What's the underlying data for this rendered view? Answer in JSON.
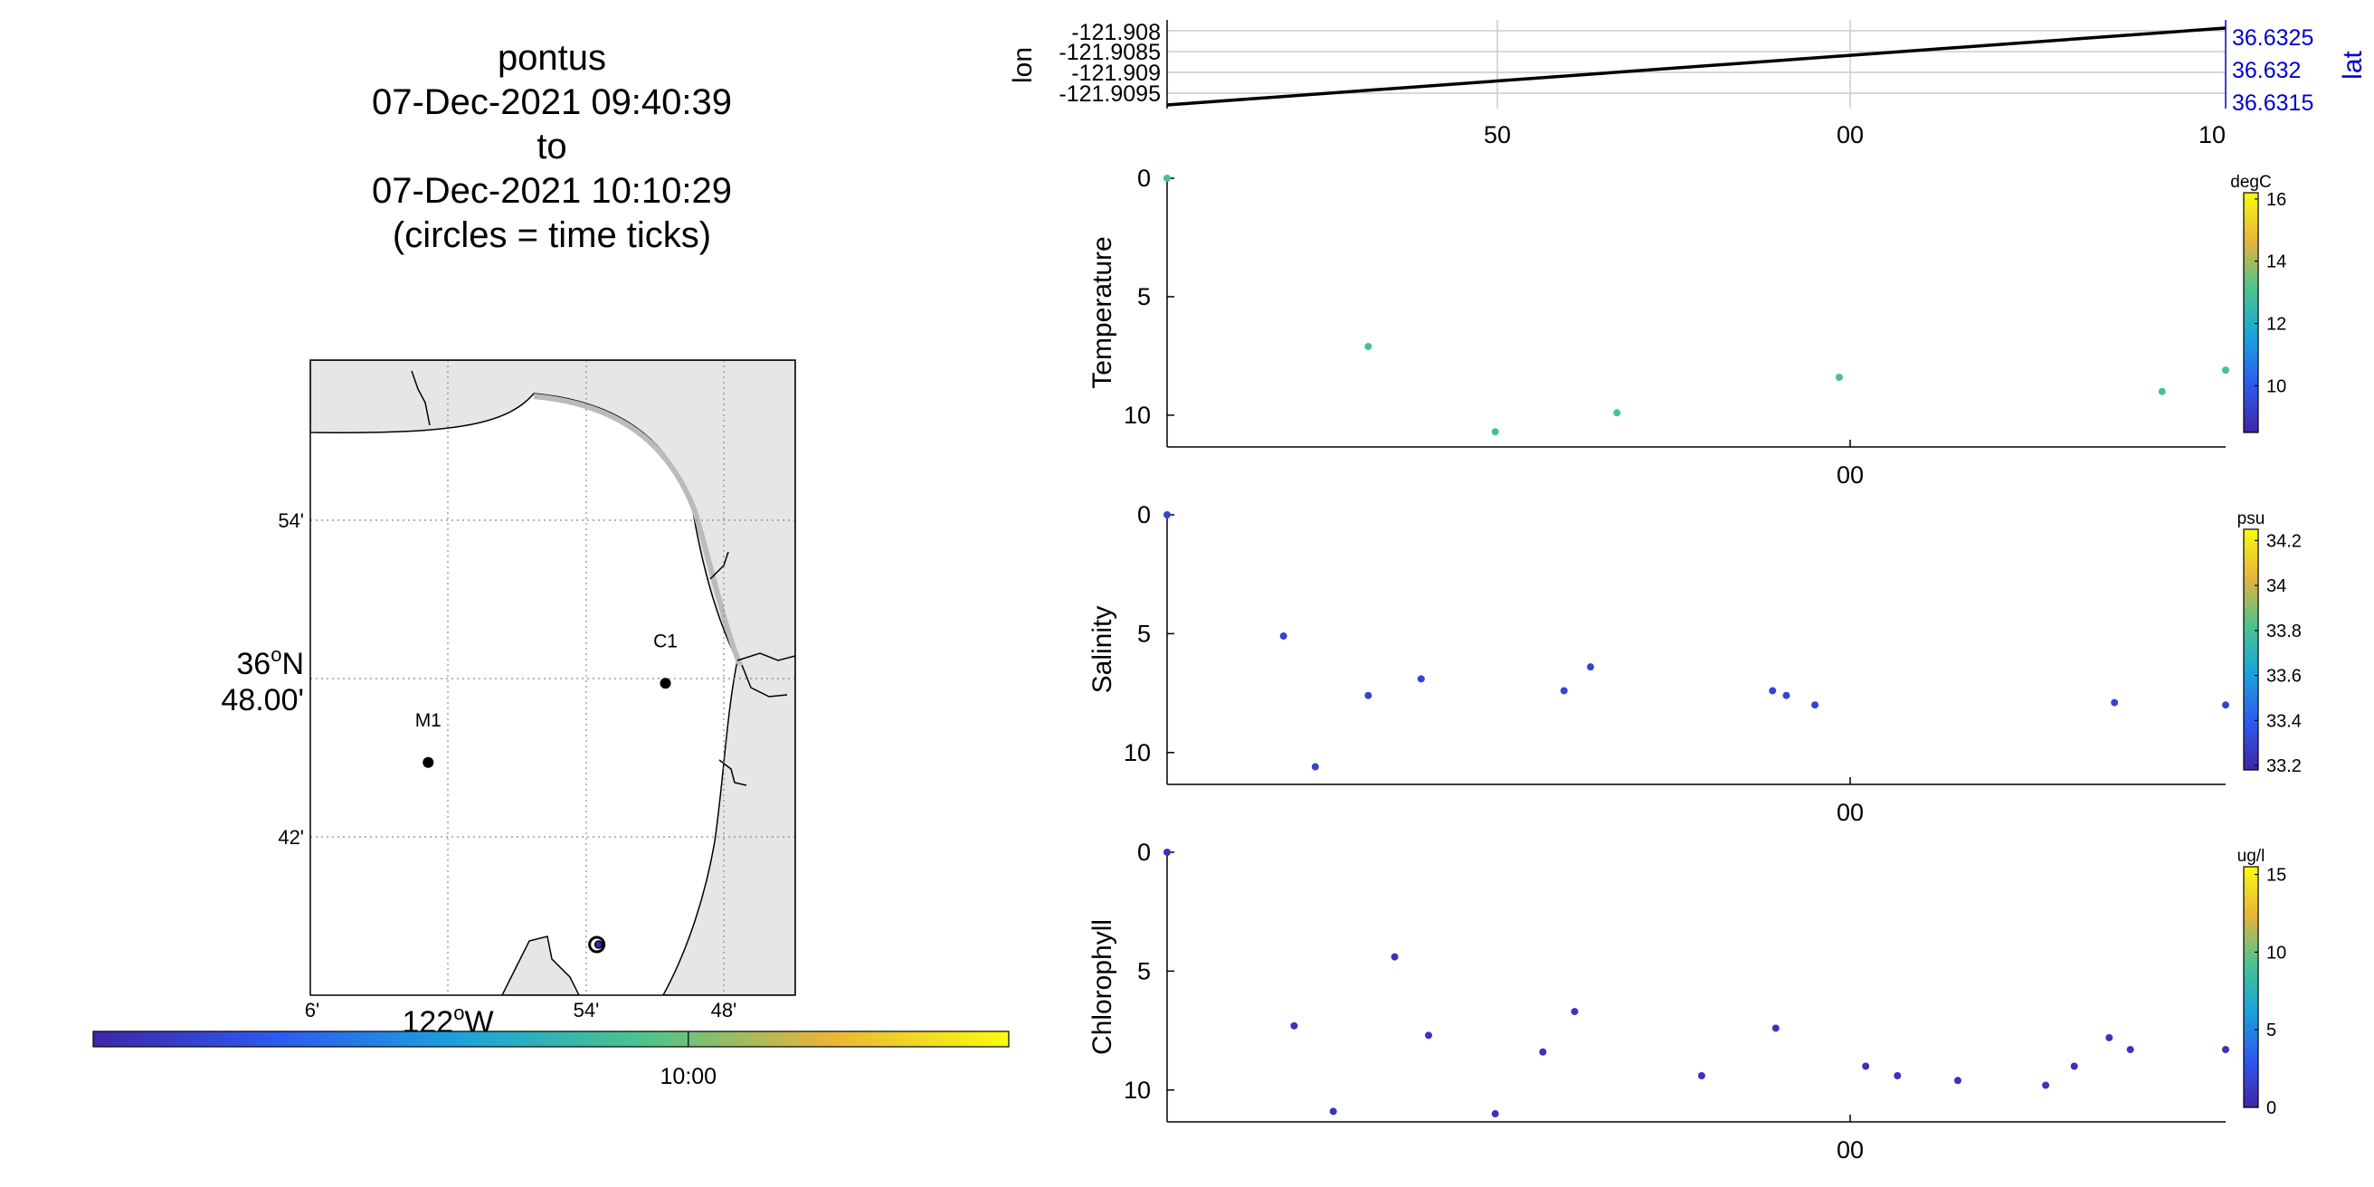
{
  "title": {
    "lines": [
      "pontus",
      "07-Dec-2021 09:40:39",
      "to",
      "07-Dec-2021 10:10:29",
      "(circles = time ticks)"
    ]
  },
  "colors": {
    "land": "#e6e6e6",
    "track": "#000000",
    "lat_axis": "#0000cc",
    "grid": "#cccccc"
  },
  "chart_data": [
    {
      "type": "map",
      "lat_label_top": "54'",
      "lat_label_mid_deg": "36",
      "lat_label_mid_deg_suffix": "N",
      "lat_label_mid_min": "48.00'",
      "lat_label_bottom": "42'",
      "lon_labels": [
        "6'",
        "54'",
        "48'"
      ],
      "lon_label_deg": "122",
      "lon_label_deg_suffix": "W",
      "stations": [
        {
          "name": "C1",
          "lon": -121.862,
          "lat": 36.797
        },
        {
          "name": "M1",
          "lon": -122.021,
          "lat": 36.747
        }
      ],
      "glider_position": {
        "lon": -121.908,
        "lat": 36.632
      },
      "time_colorbar": {
        "tick_label": "10:00",
        "tick_fraction": 0.65
      }
    },
    {
      "type": "line",
      "ylabel_left": "lon",
      "ylabel_right": "lat",
      "left_ticks": [
        "-121.908",
        "-121.9085",
        "-121.909",
        "-121.9095"
      ],
      "right_ticks": [
        "36.6325",
        "36.632",
        "36.6315"
      ],
      "x_ticks": [
        "50",
        "00",
        "10"
      ]
    },
    {
      "type": "scatter",
      "ylabel": "Temperature",
      "unit": "degC",
      "ylim": [
        0,
        11
      ],
      "y_ticks": [
        "0",
        "5",
        "10"
      ],
      "x_tick_label": "00",
      "colorbar": {
        "min": 8.5,
        "max": 16.2,
        "ticks": [
          "16",
          "14",
          "12",
          "10"
        ]
      },
      "points": [
        {
          "x": 0.0,
          "y": 0.0
        },
        {
          "x": 0.19,
          "y": 7.1
        },
        {
          "x": 0.31,
          "y": 10.7
        },
        {
          "x": 0.425,
          "y": 9.9
        },
        {
          "x": 0.635,
          "y": 8.4
        },
        {
          "x": 0.94,
          "y": 9.0
        },
        {
          "x": 1.0,
          "y": 8.1
        }
      ]
    },
    {
      "type": "scatter",
      "ylabel": "Salinity",
      "unit": "psu",
      "ylim": [
        0,
        11
      ],
      "y_ticks": [
        "0",
        "5",
        "10"
      ],
      "x_tick_label": "00",
      "colorbar": {
        "min": 33.18,
        "max": 34.25,
        "ticks": [
          "34.2",
          "34",
          "33.8",
          "33.6",
          "33.4",
          "33.2"
        ]
      },
      "points": [
        {
          "x": 0.0,
          "y": 0.0
        },
        {
          "x": 0.11,
          "y": 5.1
        },
        {
          "x": 0.14,
          "y": 10.6
        },
        {
          "x": 0.19,
          "y": 7.6
        },
        {
          "x": 0.24,
          "y": 6.9
        },
        {
          "x": 0.375,
          "y": 7.4
        },
        {
          "x": 0.4,
          "y": 6.4
        },
        {
          "x": 0.572,
          "y": 7.4
        },
        {
          "x": 0.585,
          "y": 7.6
        },
        {
          "x": 0.612,
          "y": 8.0
        },
        {
          "x": 0.895,
          "y": 7.9
        },
        {
          "x": 1.0,
          "y": 8.0
        }
      ]
    },
    {
      "type": "scatter",
      "ylabel": "Chlorophyll",
      "unit": "ug/l",
      "ylim": [
        0,
        11
      ],
      "y_ticks": [
        "0",
        "5",
        "10"
      ],
      "x_tick_label": "00",
      "colorbar": {
        "min": 0,
        "max": 15.5,
        "ticks": [
          "15",
          "10",
          "5",
          "0"
        ]
      },
      "points": [
        {
          "x": 0.0,
          "y": 0.0
        },
        {
          "x": 0.12,
          "y": 7.3
        },
        {
          "x": 0.157,
          "y": 10.9
        },
        {
          "x": 0.215,
          "y": 4.4
        },
        {
          "x": 0.247,
          "y": 7.7
        },
        {
          "x": 0.31,
          "y": 11.0
        },
        {
          "x": 0.355,
          "y": 8.4
        },
        {
          "x": 0.385,
          "y": 6.7
        },
        {
          "x": 0.505,
          "y": 9.4
        },
        {
          "x": 0.575,
          "y": 7.4
        },
        {
          "x": 0.66,
          "y": 9.0
        },
        {
          "x": 0.69,
          "y": 9.4
        },
        {
          "x": 0.747,
          "y": 9.6
        },
        {
          "x": 0.83,
          "y": 9.8
        },
        {
          "x": 0.857,
          "y": 9.0
        },
        {
          "x": 0.89,
          "y": 7.8
        },
        {
          "x": 0.91,
          "y": 8.3
        },
        {
          "x": 1.0,
          "y": 8.3
        }
      ]
    }
  ]
}
